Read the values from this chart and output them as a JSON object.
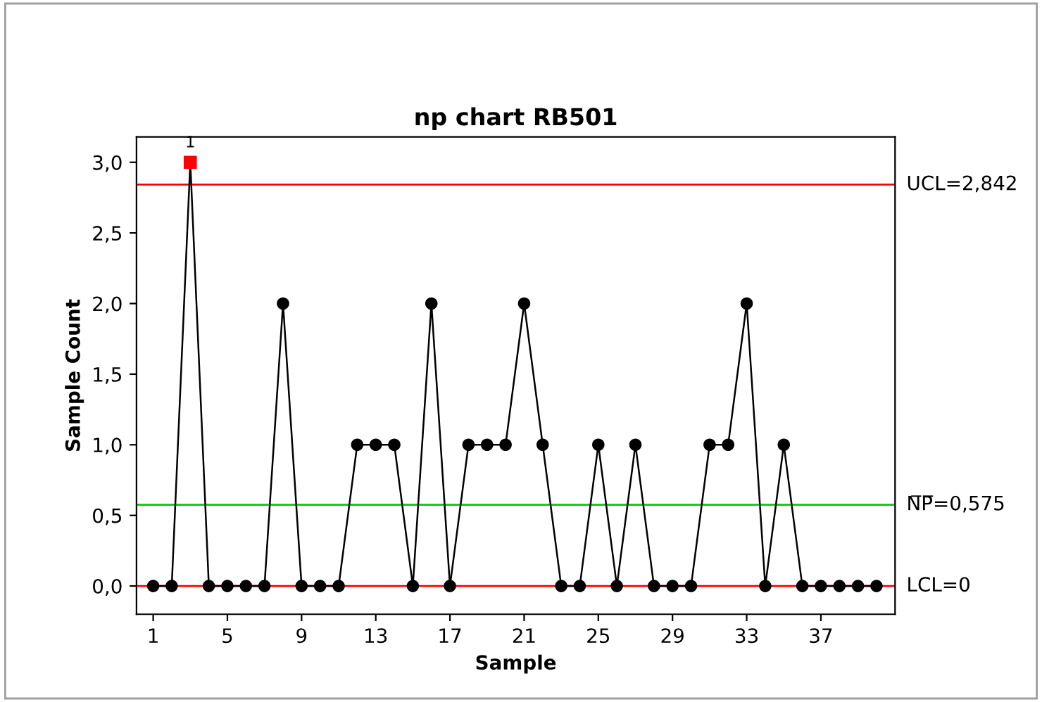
{
  "chart_data": {
    "type": "line",
    "title": "np chart RB501",
    "xlabel": "Sample",
    "ylabel": "Sample Count",
    "x": [
      1,
      2,
      3,
      4,
      5,
      6,
      7,
      8,
      9,
      10,
      11,
      12,
      13,
      14,
      15,
      16,
      17,
      18,
      19,
      20,
      21,
      22,
      23,
      24,
      25,
      26,
      27,
      28,
      29,
      30,
      31,
      32,
      33,
      34,
      35,
      36,
      37,
      38,
      39,
      40
    ],
    "series": [
      {
        "color": "#000000",
        "marker": "none",
        "values": [
          0,
          0,
          3,
          0,
          0,
          0,
          0,
          2,
          0,
          0,
          0,
          1,
          1,
          1,
          0,
          2,
          0,
          1,
          1,
          1,
          2,
          1,
          0,
          0,
          1,
          0,
          1,
          0,
          0,
          0,
          1,
          1,
          2,
          0,
          1,
          0,
          0,
          0,
          0,
          0
        ]
      },
      {
        "type": "scatter",
        "color": "#000000",
        "marker": "circle",
        "values": [
          0,
          0,
          null,
          0,
          0,
          0,
          0,
          2,
          0,
          0,
          0,
          1,
          1,
          1,
          0,
          2,
          0,
          1,
          1,
          1,
          2,
          1,
          0,
          0,
          1,
          0,
          1,
          0,
          0,
          0,
          1,
          1,
          2,
          0,
          1,
          0,
          0,
          0,
          0,
          0
        ]
      },
      {
        "type": "scatter",
        "color": "#ff0000",
        "marker": "square",
        "x": [
          3
        ],
        "values": [
          3
        ]
      }
    ],
    "xlim": [
      0.1,
      41
    ],
    "xticks": [
      1,
      5,
      9,
      13,
      17,
      21,
      25,
      29,
      33,
      37
    ],
    "ylim": [
      -0.2,
      3.18
    ],
    "yticks": [
      {
        "value": 0,
        "label": "0,0"
      },
      {
        "value": 0.5,
        "label": "0,5"
      },
      {
        "value": 1,
        "label": "1,0"
      },
      {
        "value": 1.5,
        "label": "1,5"
      },
      {
        "value": 2,
        "label": "2,0"
      },
      {
        "value": 2.5,
        "label": "2,5"
      },
      {
        "value": 3,
        "label": "3,0"
      }
    ],
    "ref_lines": [
      {
        "axis": "y",
        "value": 2.842,
        "label": "UCL=2,842",
        "color": "#ff0000"
      },
      {
        "axis": "y",
        "value": 0.575,
        "label": "N̅P̅=0,575",
        "color": "#00cc00"
      },
      {
        "axis": "y",
        "value": 0,
        "label": "LCL=0",
        "color": "#ff0000"
      }
    ],
    "annotations": [
      {
        "text": "1",
        "x": 3,
        "y": 3
      }
    ],
    "grid": false,
    "legend": false
  }
}
